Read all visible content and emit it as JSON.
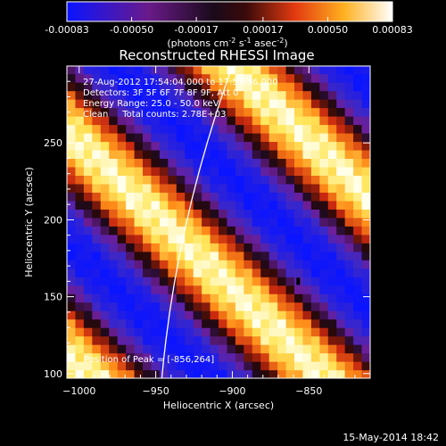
{
  "colorbar": {
    "ticks": [
      "-0.00083",
      "-0.00050",
      "-0.00017",
      "0.00017",
      "0.00050",
      "0.00083"
    ],
    "tick_values": [
      -0.00083,
      -0.0005,
      -0.00017,
      0.00017,
      0.0005,
      0.00083
    ],
    "range": [
      -0.00083,
      0.00083
    ],
    "units_main": "(photons cm",
    "units_sup1": "-2",
    "units_mid1": " s",
    "units_sup2": "-1",
    "units_mid2": " asec",
    "units_sup3": "-2",
    "units_end": ")"
  },
  "chart_data": {
    "type": "heatmap",
    "title": "Reconstructed RHESSI Image",
    "xlabel": "Heliocentric X (arcsec)",
    "ylabel": "Heliocentric Y (arcsec)",
    "xlim": [
      -1008,
      -810
    ],
    "ylim": [
      97,
      300
    ],
    "xticks": [
      -1000,
      -950,
      -900,
      -850
    ],
    "yticks": [
      100,
      150,
      200,
      250
    ],
    "xtick_labels": [
      "−1000",
      "−950",
      "−900",
      "−850"
    ],
    "ytick_labels": [
      "100",
      "150",
      "200",
      "250"
    ],
    "colormap": "blue-purple-red-yellow-white",
    "pattern": "diagonal bright/dark stripes running from upper-left to lower-right",
    "limb_curve": [
      [
        -946,
        97
      ],
      [
        -930,
        198
      ],
      [
        -900,
        300
      ]
    ],
    "annotations": {
      "time": "27-Aug-2012 17:54:04.000 to 17:55:36.000",
      "detectors": "Detectors: 3F 5F 6F 7F 8F 9F, Att 0",
      "energy": "Energy Range: 25.0 - 50.0 keV",
      "clean": "Clean     Total counts: 2.78E+03",
      "peak": "Position of Peak = [-856,264]"
    }
  },
  "footer": {
    "date": "15-May-2014 18:42"
  }
}
